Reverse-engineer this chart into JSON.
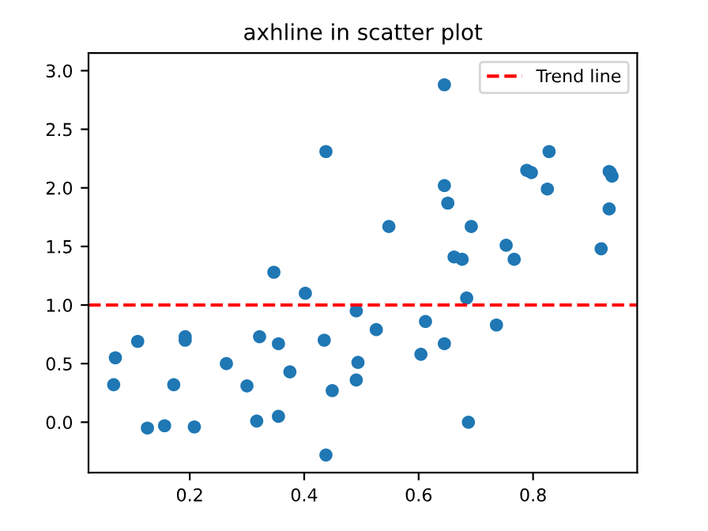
{
  "chart_data": {
    "type": "scatter",
    "title": "axhline in scatter plot",
    "x": [
      0.067,
      0.07,
      0.109,
      0.126,
      0.156,
      0.172,
      0.192,
      0.192,
      0.208,
      0.264,
      0.3,
      0.317,
      0.322,
      0.347,
      0.355,
      0.355,
      0.375,
      0.402,
      0.438,
      0.435,
      0.438,
      0.449,
      0.491,
      0.494,
      0.491,
      0.526,
      0.548,
      0.604,
      0.612,
      0.645,
      0.645,
      0.645,
      0.651,
      0.662,
      0.676,
      0.684,
      0.687,
      0.692,
      0.736,
      0.753,
      0.767,
      0.789,
      0.797,
      0.825,
      0.828,
      0.919,
      0.933,
      0.933,
      0.935,
      0.938
    ],
    "series": [
      {
        "color": "#1f77b4",
        "values": [
          0.32,
          0.55,
          0.69,
          -0.05,
          -0.03,
          0.32,
          0.73,
          0.7,
          -0.04,
          0.5,
          0.31,
          0.01,
          0.73,
          1.28,
          0.05,
          0.67,
          0.43,
          1.1,
          2.31,
          0.7,
          -0.28,
          0.27,
          0.95,
          0.51,
          0.36,
          0.79,
          1.67,
          0.58,
          0.86,
          2.88,
          2.02,
          0.67,
          1.87,
          1.41,
          1.39,
          1.06,
          0.0,
          1.67,
          0.83,
          1.51,
          1.39,
          2.15,
          2.13,
          1.99,
          2.31,
          1.48,
          1.82,
          2.14,
          2.13,
          2.1
        ]
      }
    ],
    "marker": "circle",
    "xlim": [
      0.023,
      0.982
    ],
    "ylim": [
      -0.43,
      3.15
    ],
    "xticks": [
      0.2,
      0.4,
      0.6,
      0.8
    ],
    "yticks": [
      {
        "value": 0,
        "label": "0.0"
      },
      {
        "value": 0.5,
        "label": "0.5"
      },
      {
        "value": 1,
        "label": "1.0"
      },
      {
        "value": 1.5,
        "label": "1.5"
      },
      {
        "value": 2,
        "label": "2.0"
      },
      {
        "value": 2.5,
        "label": "2.5"
      },
      {
        "value": 3,
        "label": "3.0"
      }
    ],
    "ref_lines": [
      {
        "axis": "y",
        "value": 1,
        "label": "Trend line",
        "color": "#ff0000",
        "line_style": "dashed"
      }
    ],
    "legend": "top right",
    "grid": false
  }
}
